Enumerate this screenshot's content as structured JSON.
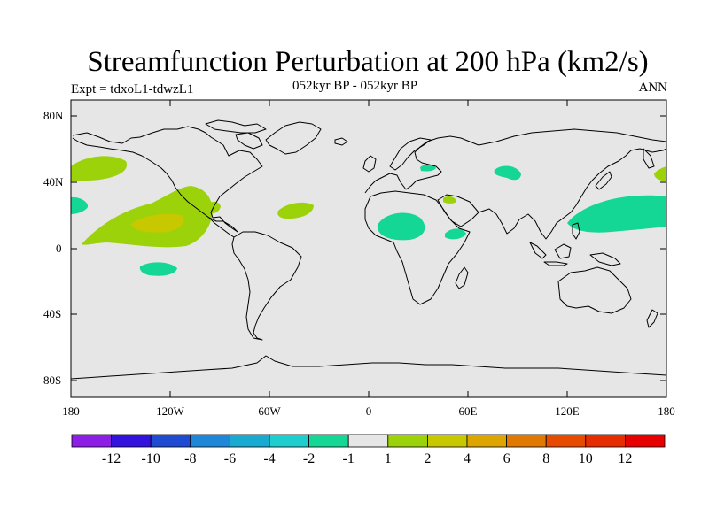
{
  "title": "Streamfunction Perturbation at 200 hPa (km2/s)",
  "subtitle_left": "Expt = tdxoL1-tdwzL1",
  "subtitle_center": "052kyr BP - 052kyr BP",
  "subtitle_right": "ANN",
  "lat_labels": [
    "80N",
    "40N",
    "0",
    "40S",
    "80S"
  ],
  "lon_labels": [
    "180",
    "120W",
    "60W",
    "0",
    "60E",
    "120E",
    "180"
  ],
  "colorbar": {
    "labels": [
      "-12",
      "-10",
      "-8",
      "-6",
      "-4",
      "-2",
      "-1",
      "1",
      "2",
      "4",
      "6",
      "8",
      "10",
      "12"
    ],
    "colors": [
      "#8c1ee6",
      "#3212dc",
      "#1e4bd2",
      "#1e87d7",
      "#19aad2",
      "#1ecdcd",
      "#14d796",
      "#e6e6e6",
      "#9bd20a",
      "#c8c800",
      "#dca500",
      "#e17800",
      "#e64b00",
      "#e62d00",
      "#e60000"
    ]
  },
  "map": {
    "land_color": "#e6e6e6",
    "coast_color": "#000000",
    "anomaly_regions": [
      {
        "name": "North Pacific (+)",
        "value_class": "1 to 2",
        "color": "#9bd20a"
      },
      {
        "name": "Eastern Tropical Pacific (+)",
        "value_class": "1 to 2",
        "color": "#9bd20a"
      },
      {
        "name": "Eastern Tropical Pacific core (+)",
        "value_class": "2 to 4",
        "color": "#c8c800"
      },
      {
        "name": "Central America (+)",
        "value_class": "1 to 2",
        "color": "#9bd20a"
      },
      {
        "name": "Tropical Atlantic (+)",
        "value_class": "1 to 2",
        "color": "#9bd20a"
      },
      {
        "name": "Subtropical East Pacific (-)",
        "value_class": "-1 to -2",
        "color": "#14d796"
      },
      {
        "name": "South East Pacific (-)",
        "value_class": "-1 to -2",
        "color": "#14d796"
      },
      {
        "name": "North Africa (-)",
        "value_class": "-1 to -2",
        "color": "#14d796"
      },
      {
        "name": "Horn of Africa (-)",
        "value_class": "-1 to -2",
        "color": "#14d796"
      },
      {
        "name": "Central Asia (-)",
        "value_class": "-1 to -2",
        "color": "#14d796"
      },
      {
        "name": "Black Sea (-)",
        "value_class": "-1 to -2",
        "color": "#14d796"
      },
      {
        "name": "Arabian Peninsula (+)",
        "value_class": "1 to 2",
        "color": "#9bd20a"
      },
      {
        "name": "West Pacific (-)",
        "value_class": "-1 to -2",
        "color": "#14d796"
      },
      {
        "name": "North West Pacific (+)",
        "value_class": "1 to 2",
        "color": "#9bd20a"
      }
    ]
  }
}
